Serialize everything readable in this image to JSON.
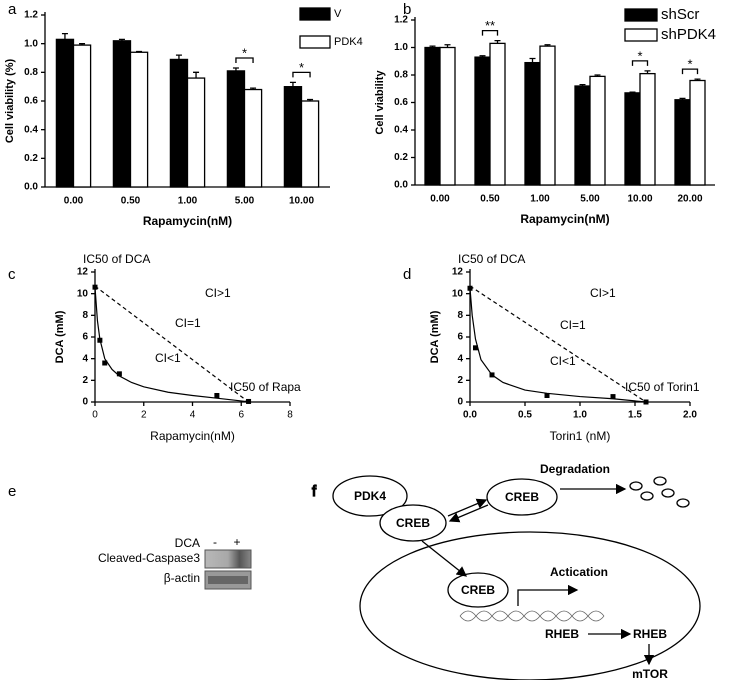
{
  "chart_data": [
    {
      "type": "bar",
      "panel": "a",
      "x_label": "Rapamycin(nM)",
      "y_label": "Cell viability (%)",
      "categories": [
        "0.00",
        "0.50",
        "1.00",
        "5.00",
        "10.00"
      ],
      "series": [
        {
          "name": "V",
          "color": "#000000",
          "values": [
            1.03,
            1.02,
            0.89,
            0.81,
            0.7
          ],
          "errors": [
            0.04,
            0.01,
            0.03,
            0.02,
            0.03
          ]
        },
        {
          "name": "PDK4",
          "color": "#ffffff",
          "values": [
            0.99,
            0.94,
            0.76,
            0.68,
            0.6
          ],
          "errors": [
            0.01,
            0.005,
            0.04,
            0.01,
            0.01
          ]
        }
      ],
      "annotations": [
        {
          "text": "*",
          "category": "5.00"
        },
        {
          "text": "*",
          "category": "10.00"
        }
      ],
      "ylim": [
        0,
        1.2
      ],
      "yticks": [
        {
          "value": 0,
          "label": "0.0"
        },
        0.2,
        0.4,
        0.6,
        0.8,
        {
          "value": 1,
          "label": "1.0"
        },
        1.2
      ]
    },
    {
      "type": "bar",
      "panel": "b",
      "x_label": "Rapamycin(nM)",
      "y_label": "Cell viability",
      "categories": [
        "0.00",
        "0.50",
        "1.00",
        "5.00",
        "10.00",
        "20.00"
      ],
      "series": [
        {
          "name": "shScr",
          "color": "#000000",
          "values": [
            1.0,
            0.93,
            0.89,
            0.72,
            0.67,
            0.62
          ],
          "errors": [
            0.01,
            0.01,
            0.03,
            0.01,
            0.005,
            0.01
          ]
        },
        {
          "name": "shPDK4",
          "color": "#ffffff",
          "values": [
            1.0,
            1.03,
            1.01,
            0.79,
            0.81,
            0.76
          ],
          "errors": [
            0.02,
            0.02,
            0.01,
            0.01,
            0.02,
            0.01
          ]
        }
      ],
      "annotations": [
        {
          "text": "**",
          "category": "0.50"
        },
        {
          "text": "*",
          "category": "10.00"
        },
        {
          "text": "*",
          "category": "20.00"
        }
      ],
      "ylim": [
        0,
        1.2
      ],
      "yticks": [
        {
          "value": 0,
          "label": "0.0"
        },
        0.2,
        0.4,
        0.6,
        0.8,
        {
          "value": 1,
          "label": "1.0"
        },
        1.2
      ]
    },
    {
      "type": "scatter",
      "panel": "c",
      "x_label": "Rapamycin(nM)",
      "y_label": "DCA (mM)",
      "color": "#000000",
      "x": [
        0,
        0.2,
        0.4,
        1.0,
        5.0,
        6.3
      ],
      "values": [
        10.6,
        5.7,
        3.6,
        2.6,
        0.6,
        0.05
      ],
      "fit": {
        "x": [
          0,
          0.1,
          0.2,
          0.4,
          0.7,
          1,
          1.5,
          2,
          3,
          4,
          5,
          6,
          6.3
        ],
        "values": [
          10.6,
          7.5,
          5.8,
          4.0,
          3.0,
          2.4,
          1.8,
          1.4,
          0.9,
          0.6,
          0.35,
          0.1,
          0.02
        ]
      },
      "additive_line": {
        "x": [
          0,
          6.3
        ],
        "values": [
          10.7,
          0
        ]
      },
      "annotations": [
        "IC50 of DCA",
        "CI>1",
        "CI=1",
        "CI<1",
        "IC50 of Rapa"
      ],
      "xlim": [
        0,
        8
      ],
      "xticks": [
        0,
        2,
        4,
        6,
        8
      ],
      "ylim": [
        0,
        12
      ],
      "yticks": [
        0,
        2,
        4,
        6,
        8,
        10,
        12
      ]
    },
    {
      "type": "scatter",
      "panel": "d",
      "x_label": "Torin1 (nM)",
      "y_label": "DCA (mM)",
      "color": "#000000",
      "x": [
        0,
        0.05,
        0.2,
        0.7,
        1.3,
        1.6
      ],
      "values": [
        10.5,
        5.0,
        2.5,
        0.6,
        0.5,
        0
      ],
      "fit": {
        "x": [
          0,
          0.02,
          0.05,
          0.1,
          0.2,
          0.3,
          0.5,
          0.7,
          1,
          1.3,
          1.6
        ],
        "values": [
          10.5,
          8,
          5.8,
          3.9,
          2.5,
          1.8,
          1.1,
          0.8,
          0.5,
          0.3,
          0
        ]
      },
      "additive_line": {
        "x": [
          0,
          1.6
        ],
        "values": [
          10.7,
          0
        ]
      },
      "annotations": [
        "IC50 of DCA",
        "CI>1",
        "CI=1",
        "CI<1",
        "IC50 of Torin1"
      ],
      "xlim": [
        0,
        2
      ],
      "xticks": [
        {
          "value": 0,
          "label": "0.0"
        },
        0.5,
        {
          "value": 1,
          "label": "1.0"
        },
        1.5,
        {
          "value": 2,
          "label": "2.0"
        }
      ],
      "ylim": [
        0,
        12
      ],
      "yticks": [
        0,
        2,
        4,
        6,
        8,
        10,
        12
      ]
    }
  ],
  "blot": {
    "panel": "e",
    "treatment": "DCA",
    "lanes": [
      "-",
      "+"
    ],
    "bands": [
      "Cleaved-Caspase3",
      "β-actin"
    ]
  },
  "diagram": {
    "panel": "f",
    "nodes": [
      "PDK4",
      "CREB",
      "CREB",
      "CREB",
      "RHEB",
      "RHEB",
      "mTOR"
    ],
    "labels": [
      "Degradation",
      "Actication"
    ]
  }
}
